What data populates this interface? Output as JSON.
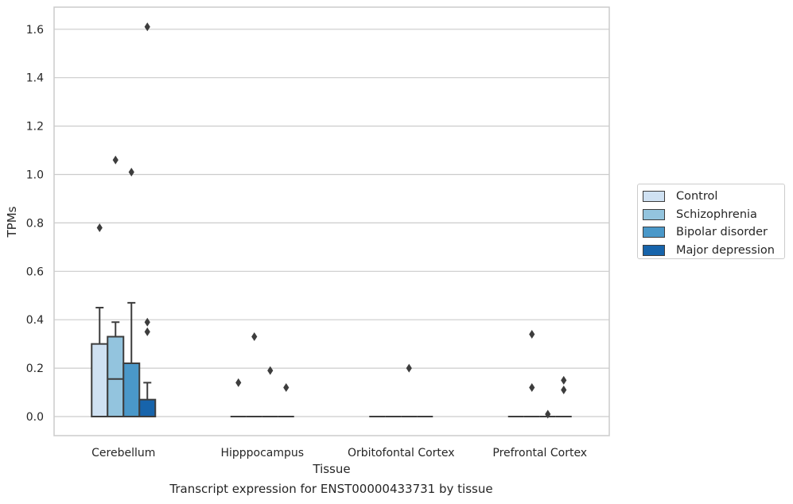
{
  "colors": {
    "Control": "#cfe1f2",
    "Schizophrenia": "#93c4de",
    "Bipolar disorder": "#4a98c9",
    "Major depression": "#1764ab",
    "grid": "#cccccc",
    "spine": "#cccccc",
    "box_edge": "#3d3d3d",
    "text": "#262626"
  },
  "caption": "Transcript expression for ENST00000433731 by tissue",
  "chart_data": {
    "type": "box",
    "title": "",
    "xlabel": "Tissue",
    "ylabel": "TPMs",
    "ylim": [
      -0.08,
      1.69
    ],
    "yticks": [
      0.0,
      0.2,
      0.4,
      0.6,
      0.8,
      1.0,
      1.2,
      1.4,
      1.6
    ],
    "ytick_labels": [
      "0.0",
      "0.2",
      "0.4",
      "0.6",
      "0.8",
      "1.0",
      "1.2",
      "1.4",
      "1.6"
    ],
    "grid": true,
    "legend_position": "right",
    "categories": [
      "Cerebellum",
      "Hipppocampus",
      "Orbitofontal Cortex",
      "Prefrontal Cortex"
    ],
    "series": [
      {
        "name": "Control",
        "boxes": [
          {
            "q1": 0.0,
            "median": 0.0,
            "q3": 0.3,
            "whisker_low": 0.0,
            "whisker_high": 0.45,
            "outliers": [
              0.78
            ]
          },
          {
            "q1": 0.0,
            "median": 0.0,
            "q3": 0.0,
            "whisker_low": 0.0,
            "whisker_high": 0.0,
            "outliers": [
              0.14
            ]
          },
          {
            "q1": 0.0,
            "median": 0.0,
            "q3": 0.0,
            "whisker_low": 0.0,
            "whisker_high": 0.0,
            "outliers": []
          },
          {
            "q1": 0.0,
            "median": 0.0,
            "q3": 0.0,
            "whisker_low": 0.0,
            "whisker_high": 0.0,
            "outliers": []
          }
        ]
      },
      {
        "name": "Schizophrenia",
        "boxes": [
          {
            "q1": 0.0,
            "median": 0.155,
            "q3": 0.33,
            "whisker_low": 0.0,
            "whisker_high": 0.39,
            "outliers": [
              1.06
            ]
          },
          {
            "q1": 0.0,
            "median": 0.0,
            "q3": 0.0,
            "whisker_low": 0.0,
            "whisker_high": 0.0,
            "outliers": [
              0.33
            ]
          },
          {
            "q1": 0.0,
            "median": 0.0,
            "q3": 0.0,
            "whisker_low": 0.0,
            "whisker_high": 0.0,
            "outliers": []
          },
          {
            "q1": 0.0,
            "median": 0.0,
            "q3": 0.0,
            "whisker_low": 0.0,
            "whisker_high": 0.0,
            "outliers": [
              0.34,
              0.12
            ]
          }
        ]
      },
      {
        "name": "Bipolar disorder",
        "boxes": [
          {
            "q1": 0.0,
            "median": 0.0,
            "q3": 0.22,
            "whisker_low": 0.0,
            "whisker_high": 0.47,
            "outliers": [
              1.01
            ]
          },
          {
            "q1": 0.0,
            "median": 0.0,
            "q3": 0.0,
            "whisker_low": 0.0,
            "whisker_high": 0.0,
            "outliers": [
              0.19
            ]
          },
          {
            "q1": 0.0,
            "median": 0.0,
            "q3": 0.0,
            "whisker_low": 0.0,
            "whisker_high": 0.0,
            "outliers": [
              0.2
            ]
          },
          {
            "q1": 0.0,
            "median": 0.0,
            "q3": 0.0,
            "whisker_low": 0.0,
            "whisker_high": 0.0,
            "outliers": [
              0.01
            ]
          }
        ]
      },
      {
        "name": "Major depression",
        "boxes": [
          {
            "q1": 0.0,
            "median": 0.0,
            "q3": 0.07,
            "whisker_low": 0.0,
            "whisker_high": 0.14,
            "outliers": [
              1.61,
              0.39,
              0.35
            ]
          },
          {
            "q1": 0.0,
            "median": 0.0,
            "q3": 0.0,
            "whisker_low": 0.0,
            "whisker_high": 0.0,
            "outliers": [
              0.12
            ]
          },
          {
            "q1": 0.0,
            "median": 0.0,
            "q3": 0.0,
            "whisker_low": 0.0,
            "whisker_high": 0.0,
            "outliers": []
          },
          {
            "q1": 0.0,
            "median": 0.0,
            "q3": 0.0,
            "whisker_low": 0.0,
            "whisker_high": 0.0,
            "outliers": [
              0.15,
              0.11
            ]
          }
        ]
      }
    ]
  }
}
